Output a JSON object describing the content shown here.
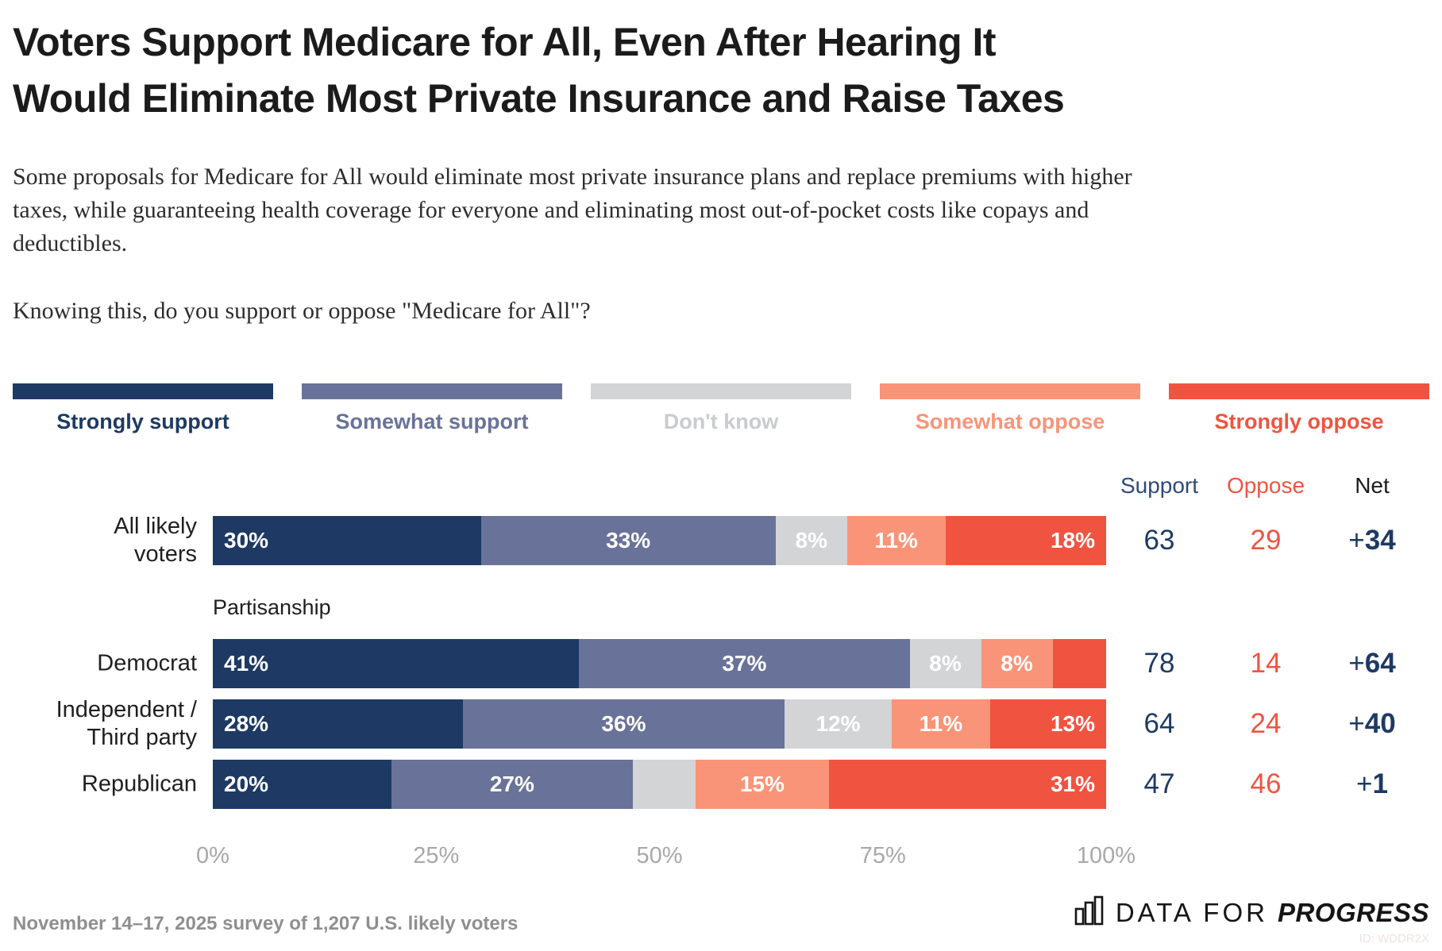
{
  "title_lines": [
    "Voters Support Medicare for All, Even After Hearing It",
    "Would Eliminate Most Private Insurance and Raise Taxes"
  ],
  "subtitle": "Some proposals for Medicare for All would eliminate most private insurance plans and replace premiums with higher taxes, while guaranteeing health coverage for everyone and eliminating most out-of-pocket costs like copays and deductibles.",
  "question": "Knowing this, do you support or oppose \"Medicare for All\"?",
  "section_label": "Partisanship",
  "colors": {
    "support": "#1e3a64",
    "oppose": "#f05440",
    "net": "#1e3a64",
    "axis_text": "#a8a8a8"
  },
  "chart_data": {
    "type": "bar",
    "orientation": "horizontal",
    "stacked": true,
    "xlim": [
      0,
      100
    ],
    "x_ticks": [
      "0%",
      "25%",
      "50%",
      "75%",
      "100%"
    ],
    "grid": false,
    "legend_position": "top",
    "categories": [
      "All likely voters",
      "Democrat",
      "Independent / Third party",
      "Republican"
    ],
    "category_lines": [
      [
        "All likely",
        "voters"
      ],
      [
        "Democrat"
      ],
      [
        "Independent /",
        "Third party"
      ],
      [
        "Republican"
      ]
    ],
    "series": [
      {
        "name": "Strongly support",
        "color": "#1e3a64",
        "values": [
          30,
          41,
          28,
          20
        ]
      },
      {
        "name": "Somewhat support",
        "color": "#697399",
        "values": [
          33,
          37,
          36,
          27
        ]
      },
      {
        "name": "Don't know",
        "color": "#d2d4d6",
        "values": [
          8,
          8,
          12,
          7
        ]
      },
      {
        "name": "Somewhat oppose",
        "color": "#f99478",
        "values": [
          11,
          8,
          11,
          15
        ]
      },
      {
        "name": "Strongly oppose",
        "color": "#f05440",
        "values": [
          18,
          6,
          13,
          31
        ]
      }
    ],
    "bar_labels": [
      [
        "30%",
        "33%",
        "8%",
        "11%",
        "18%"
      ],
      [
        "41%",
        "37%",
        "8%",
        "8%",
        null
      ],
      [
        "28%",
        "36%",
        "12%",
        "11%",
        "13%"
      ],
      [
        "20%",
        "27%",
        null,
        "15%",
        "31%"
      ]
    ],
    "summary": {
      "headers": [
        "Support",
        "Oppose",
        "Net"
      ],
      "support": [
        63,
        78,
        64,
        47
      ],
      "oppose": [
        29,
        14,
        24,
        46
      ],
      "net": [
        "+34",
        "+64",
        "+40",
        "+1"
      ]
    }
  },
  "footer": {
    "note": "November 14–17, 2025 survey of 1,207 U.S. likely voters",
    "logo_prefix": "DATA FOR",
    "logo_suffix": "PROGRESS",
    "chart_id": "ID: WDDR2X"
  }
}
